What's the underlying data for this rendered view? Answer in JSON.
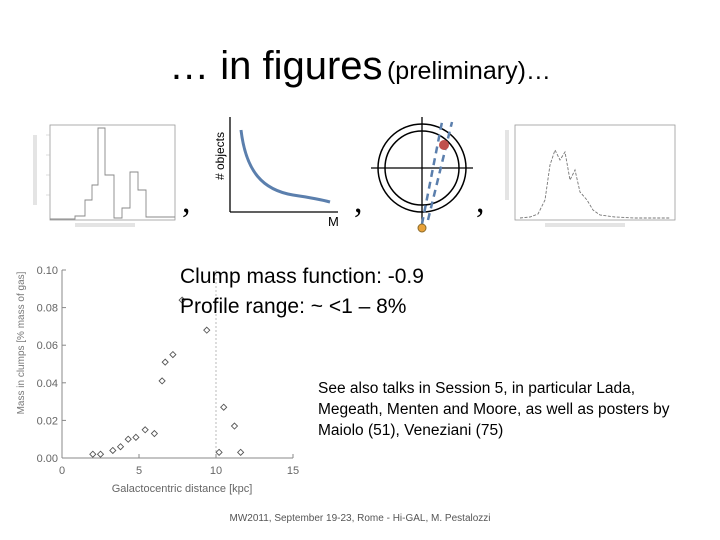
{
  "title": {
    "main": "… in figures",
    "sub": "(preliminary)…"
  },
  "commas": [
    ",",
    ",",
    ","
  ],
  "sketch": {
    "ylabel": "# objects",
    "xlabel": "M"
  },
  "bullets": [
    "Clump mass function: -0.9",
    "Profile range: ~ <1 – 8%"
  ],
  "note": "See also talks in Session 5, in particular Lada, Megeath, Menten and Moore,  as well as posters by Maiolo (51), Veneziani (75)",
  "footer": "MW2011, September 19-23, Rome - Hi-GAL, M. Pestalozzi",
  "colors": {
    "curve": "#5b7fad",
    "dashes": "#5b7fad",
    "marker_top": "#c0504d",
    "marker_bottom": "#e8a23a"
  },
  "chart_data": [
    {
      "type": "scatter",
      "xlabel": "Galactocentric distance [kpc]",
      "ylabel": "Mass in clumps [% mass of gas]",
      "xlim": [
        0,
        15
      ],
      "ylim": [
        0,
        0.1
      ],
      "xticks": [
        "0",
        "5",
        "10",
        "15"
      ],
      "yticks": [
        "0.00",
        "0.02",
        "0.04",
        "0.06",
        "0.08",
        "0.10"
      ],
      "points": [
        {
          "x": 2.0,
          "y": 0.002
        },
        {
          "x": 2.5,
          "y": 0.002
        },
        {
          "x": 3.3,
          "y": 0.004
        },
        {
          "x": 3.8,
          "y": 0.006
        },
        {
          "x": 4.3,
          "y": 0.01
        },
        {
          "x": 4.8,
          "y": 0.011
        },
        {
          "x": 5.4,
          "y": 0.015
        },
        {
          "x": 6.0,
          "y": 0.013
        },
        {
          "x": 6.5,
          "y": 0.041
        },
        {
          "x": 6.7,
          "y": 0.051
        },
        {
          "x": 7.2,
          "y": 0.055
        },
        {
          "x": 7.8,
          "y": 0.084
        },
        {
          "x": 9.4,
          "y": 0.068
        },
        {
          "x": 10.5,
          "y": 0.027
        },
        {
          "x": 10.2,
          "y": 0.003
        },
        {
          "x": 11.2,
          "y": 0.017
        },
        {
          "x": 11.6,
          "y": 0.003
        }
      ]
    }
  ]
}
